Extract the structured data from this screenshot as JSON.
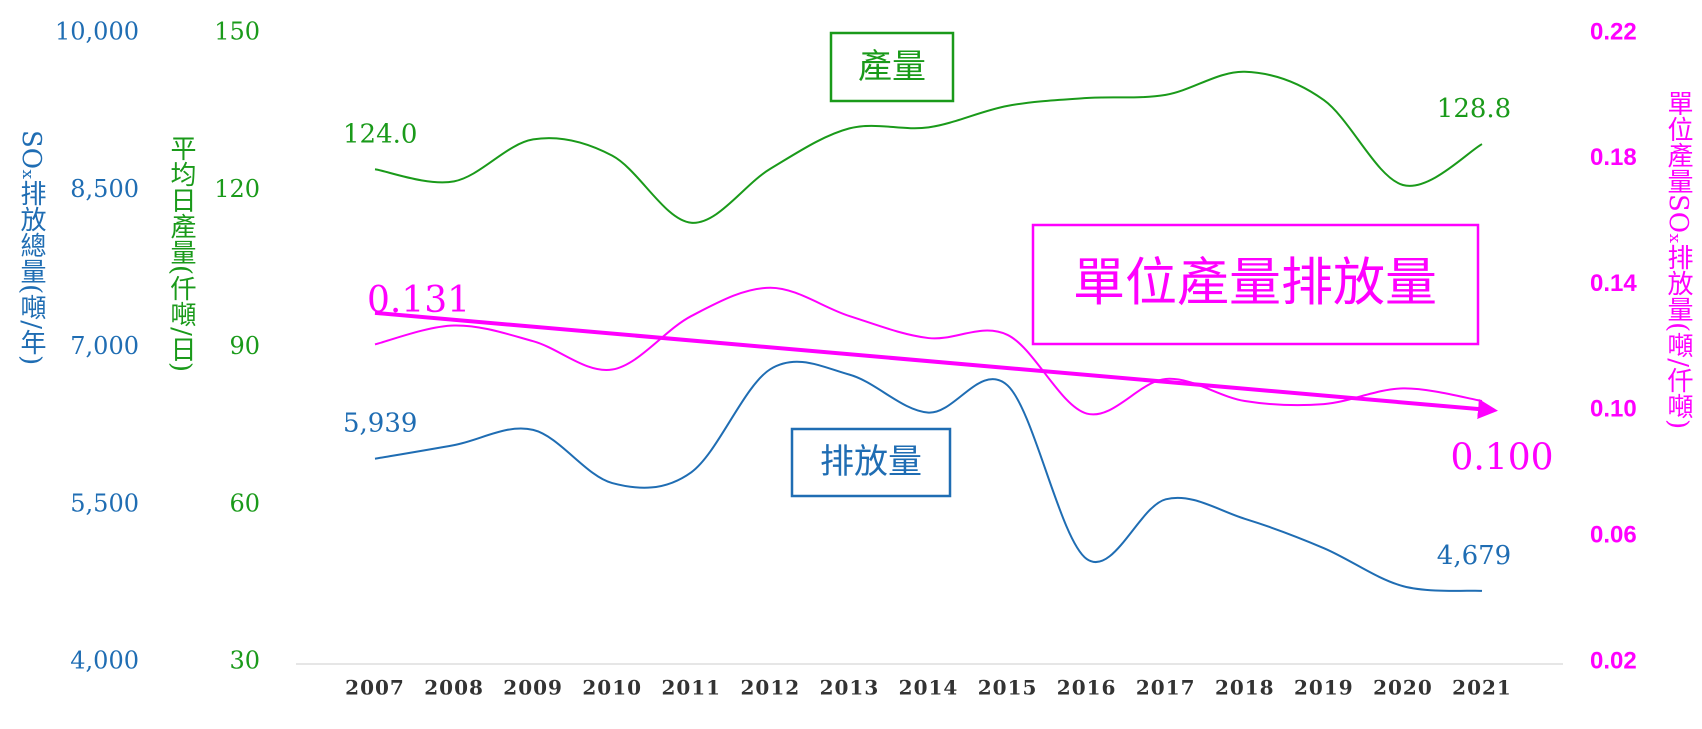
{
  "chart_data": {
    "type": "line",
    "categories": [
      "2007",
      "2008",
      "2009",
      "2010",
      "2011",
      "2012",
      "2013",
      "2014",
      "2015",
      "2016",
      "2017",
      "2018",
      "2019",
      "2020",
      "2021"
    ],
    "series": [
      {
        "name": "排放量",
        "color": "#1f6db3",
        "axis": "y",
        "values": [
          5939,
          6069,
          6214,
          5707,
          5810,
          6793,
          6741,
          6379,
          6638,
          4983,
          5552,
          5366,
          5086,
          4724,
          4679
        ],
        "value_labels": [
          "5,939",
          null,
          null,
          null,
          null,
          null,
          null,
          null,
          null,
          null,
          null,
          null,
          null,
          null,
          "4,679"
        ]
      },
      {
        "name": "產量",
        "color": "#1a9a1a",
        "axis": "y2",
        "values": [
          124.0,
          121.7,
          129.7,
          126.6,
          113.8,
          124.1,
          131.8,
          132.0,
          136.1,
          137.6,
          138.2,
          142.6,
          137.2,
          121.0,
          128.8
        ],
        "value_labels": [
          "124.0",
          null,
          null,
          null,
          null,
          null,
          null,
          null,
          null,
          null,
          null,
          null,
          null,
          null,
          "128.8"
        ]
      },
      {
        "name": "單位產量排放量",
        "color": "#ff00ff",
        "axis": "y3",
        "values": [
          0.121,
          0.127,
          0.122,
          0.113,
          0.13,
          0.139,
          0.13,
          0.123,
          0.124,
          0.099,
          0.11,
          0.103,
          0.102,
          0.107,
          0.103
        ]
      }
    ],
    "trend": {
      "color": "#ff00ff",
      "axis": "y3",
      "values": [
        0.131,
        0.1
      ],
      "value_labels": [
        "0.131",
        "0.100"
      ]
    },
    "ylabel": "SOₓ排放總量(噸/年)",
    "ylim": [
      4000,
      10000
    ],
    "yticks": [
      {
        "value": 4000,
        "label": "4,000"
      },
      {
        "value": 5500,
        "label": "5,500"
      },
      {
        "value": 7000,
        "label": "7,000"
      },
      {
        "value": 8500,
        "label": "8,500"
      },
      {
        "value": 10000,
        "label": "10,000"
      }
    ],
    "y2label": "平均日產量(仟噸/日)",
    "y2lim": [
      30,
      150
    ],
    "y2ticks": [
      30,
      60,
      90,
      120,
      150
    ],
    "y3label": "單位產量SOₓ排放量(噸/仟噸)",
    "y3lim": [
      0.02,
      0.22
    ],
    "y3ticks": [
      0.02,
      0.06,
      {
        "value": 0.1,
        "label": "0.10"
      },
      0.14,
      0.18,
      0.22
    ]
  }
}
